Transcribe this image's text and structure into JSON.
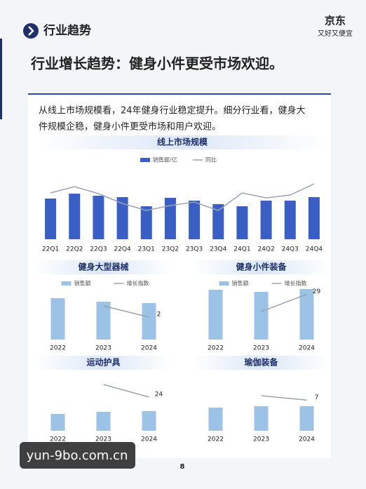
{
  "header": {
    "section": "行业趋势",
    "logo": "京东",
    "slogan": "又好又便宜"
  },
  "title": "行业增长趋势：健身小件更受市场欢迎。",
  "body": [
    "从线上市场规模看，24年健身行业稳定提升。细分行业看，健身大",
    "件规模企稳，健身小件更受市场和用户欢迎。"
  ],
  "charts": [
    {
      "type": "bar",
      "title": "线上市场规模",
      "legend": true,
      "ylim": [
        0,
        100
      ],
      "y2lim": [
        0,
        100
      ],
      "categories": [
        "22Q1",
        "22Q2",
        "22Q3",
        "22Q4",
        "23Q1",
        "23Q2",
        "23Q3",
        "23Q4",
        "24Q1",
        "24Q2",
        "24Q3",
        "24Q4"
      ],
      "series": [
        {
          "name": "销售额/亿",
          "color": "#3a5fc4",
          "values": [
            58,
            65,
            62,
            60,
            47,
            59,
            55,
            50,
            47,
            55,
            55,
            60
          ]
        },
        {
          "name": "同比",
          "color": "#9aa3b5",
          "type": "line",
          "axis": "y2",
          "values": [
            66,
            75,
            65,
            51,
            41,
            48,
            53,
            41,
            66,
            59,
            63,
            79
          ]
        }
      ]
    },
    {
      "type": "bar",
      "title": "健身大型器械",
      "legend": true,
      "ylim": [
        0,
        100
      ],
      "y2lim": [
        0,
        6.25
      ],
      "categories": [
        "2022",
        "2023",
        "2024"
      ],
      "series": [
        {
          "name": "销售额",
          "color": "#9cc3e6",
          "values": [
            59,
            54,
            52
          ]
        },
        {
          "name": "增长指数",
          "color": "#9aa3b5",
          "type": "line",
          "axis": "y2",
          "values": [
            null,
            3,
            2
          ]
        }
      ]
    },
    {
      "type": "bar",
      "title": "健身小件装备",
      "legend": true,
      "ylim": [
        0,
        100
      ],
      "y2lim": [
        0,
        45
      ],
      "categories": [
        "2022",
        "2023",
        "2024"
      ],
      "series": [
        {
          "name": "销售额",
          "color": "#9cc3e6",
          "values": [
            71,
            68,
            72
          ]
        },
        {
          "name": "增长指数",
          "color": "#9aa3b5",
          "type": "line",
          "axis": "y2",
          "values": [
            null,
            18,
            29
          ]
        }
      ]
    },
    {
      "type": "bar",
      "title": "运动护具",
      "legend": false,
      "ylim": [
        0,
        100
      ],
      "y2lim": [
        0,
        50
      ],
      "categories": [
        "2022",
        "2023",
        "2024"
      ],
      "series": [
        {
          "name": "销售额",
          "color": "#9cc3e6",
          "values": [
            24,
            27,
            28
          ]
        },
        {
          "name": "增长指数",
          "color": "#9aa3b5",
          "type": "line",
          "axis": "y2",
          "values": [
            null,
            33,
            24
          ]
        }
      ]
    },
    {
      "type": "bar",
      "title": "瑜伽装备",
      "legend": false,
      "ylim": [
        0,
        100
      ],
      "y2lim": [
        0,
        16
      ],
      "categories": [
        "2022",
        "2023",
        "2024"
      ],
      "series": [
        {
          "name": "销售额",
          "color": "#9cc3e6",
          "values": [
            33,
            35,
            35
          ]
        },
        {
          "name": "增长指数",
          "color": "#9aa3b5",
          "type": "line",
          "axis": "y2",
          "values": [
            null,
            8,
            7
          ]
        }
      ]
    }
  ],
  "page_number": "8",
  "watermark": "yun-9bo.com.cn"
}
